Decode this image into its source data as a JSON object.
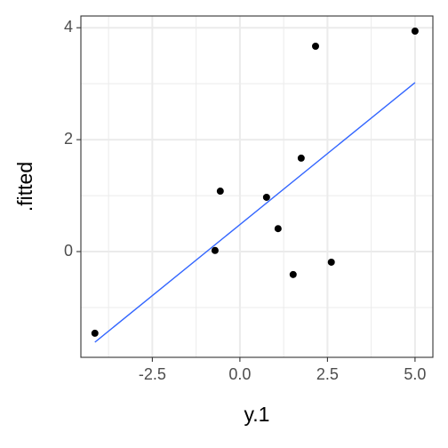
{
  "chart_data": {
    "type": "scatter",
    "x_label": "y.1",
    "y_label": ".fitted",
    "xlim": [
      -4.54,
      5.51
    ],
    "ylim": [
      -1.89,
      4.21
    ],
    "xticks": [
      {
        "value": -2.5,
        "label": "-2.5"
      },
      {
        "value": 0,
        "label": "0.0"
      },
      {
        "value": 2.5,
        "label": "2.5"
      },
      {
        "value": 5,
        "label": "5.0"
      }
    ],
    "yticks": [
      0,
      2,
      4
    ],
    "x_minor_ticks": [
      -3.75,
      -1.25,
      1.25,
      3.75
    ],
    "y_minor_ticks": [
      -1,
      1,
      3
    ],
    "grid": true,
    "series": [
      {
        "color": "#000000",
        "x": [
          -4.14,
          -0.71,
          -0.56,
          0.76,
          1.09,
          1.52,
          1.75,
          2.16,
          2.61,
          5.0
        ],
        "values": [
          -1.46,
          0.02,
          1.08,
          0.97,
          0.41,
          -0.41,
          1.67,
          3.67,
          -0.19,
          3.94
        ]
      }
    ],
    "fit_line": {
      "color": "#3366ff",
      "x": [
        -4.14,
        5.0
      ],
      "values": [
        -1.62,
        3.02
      ]
    }
  }
}
